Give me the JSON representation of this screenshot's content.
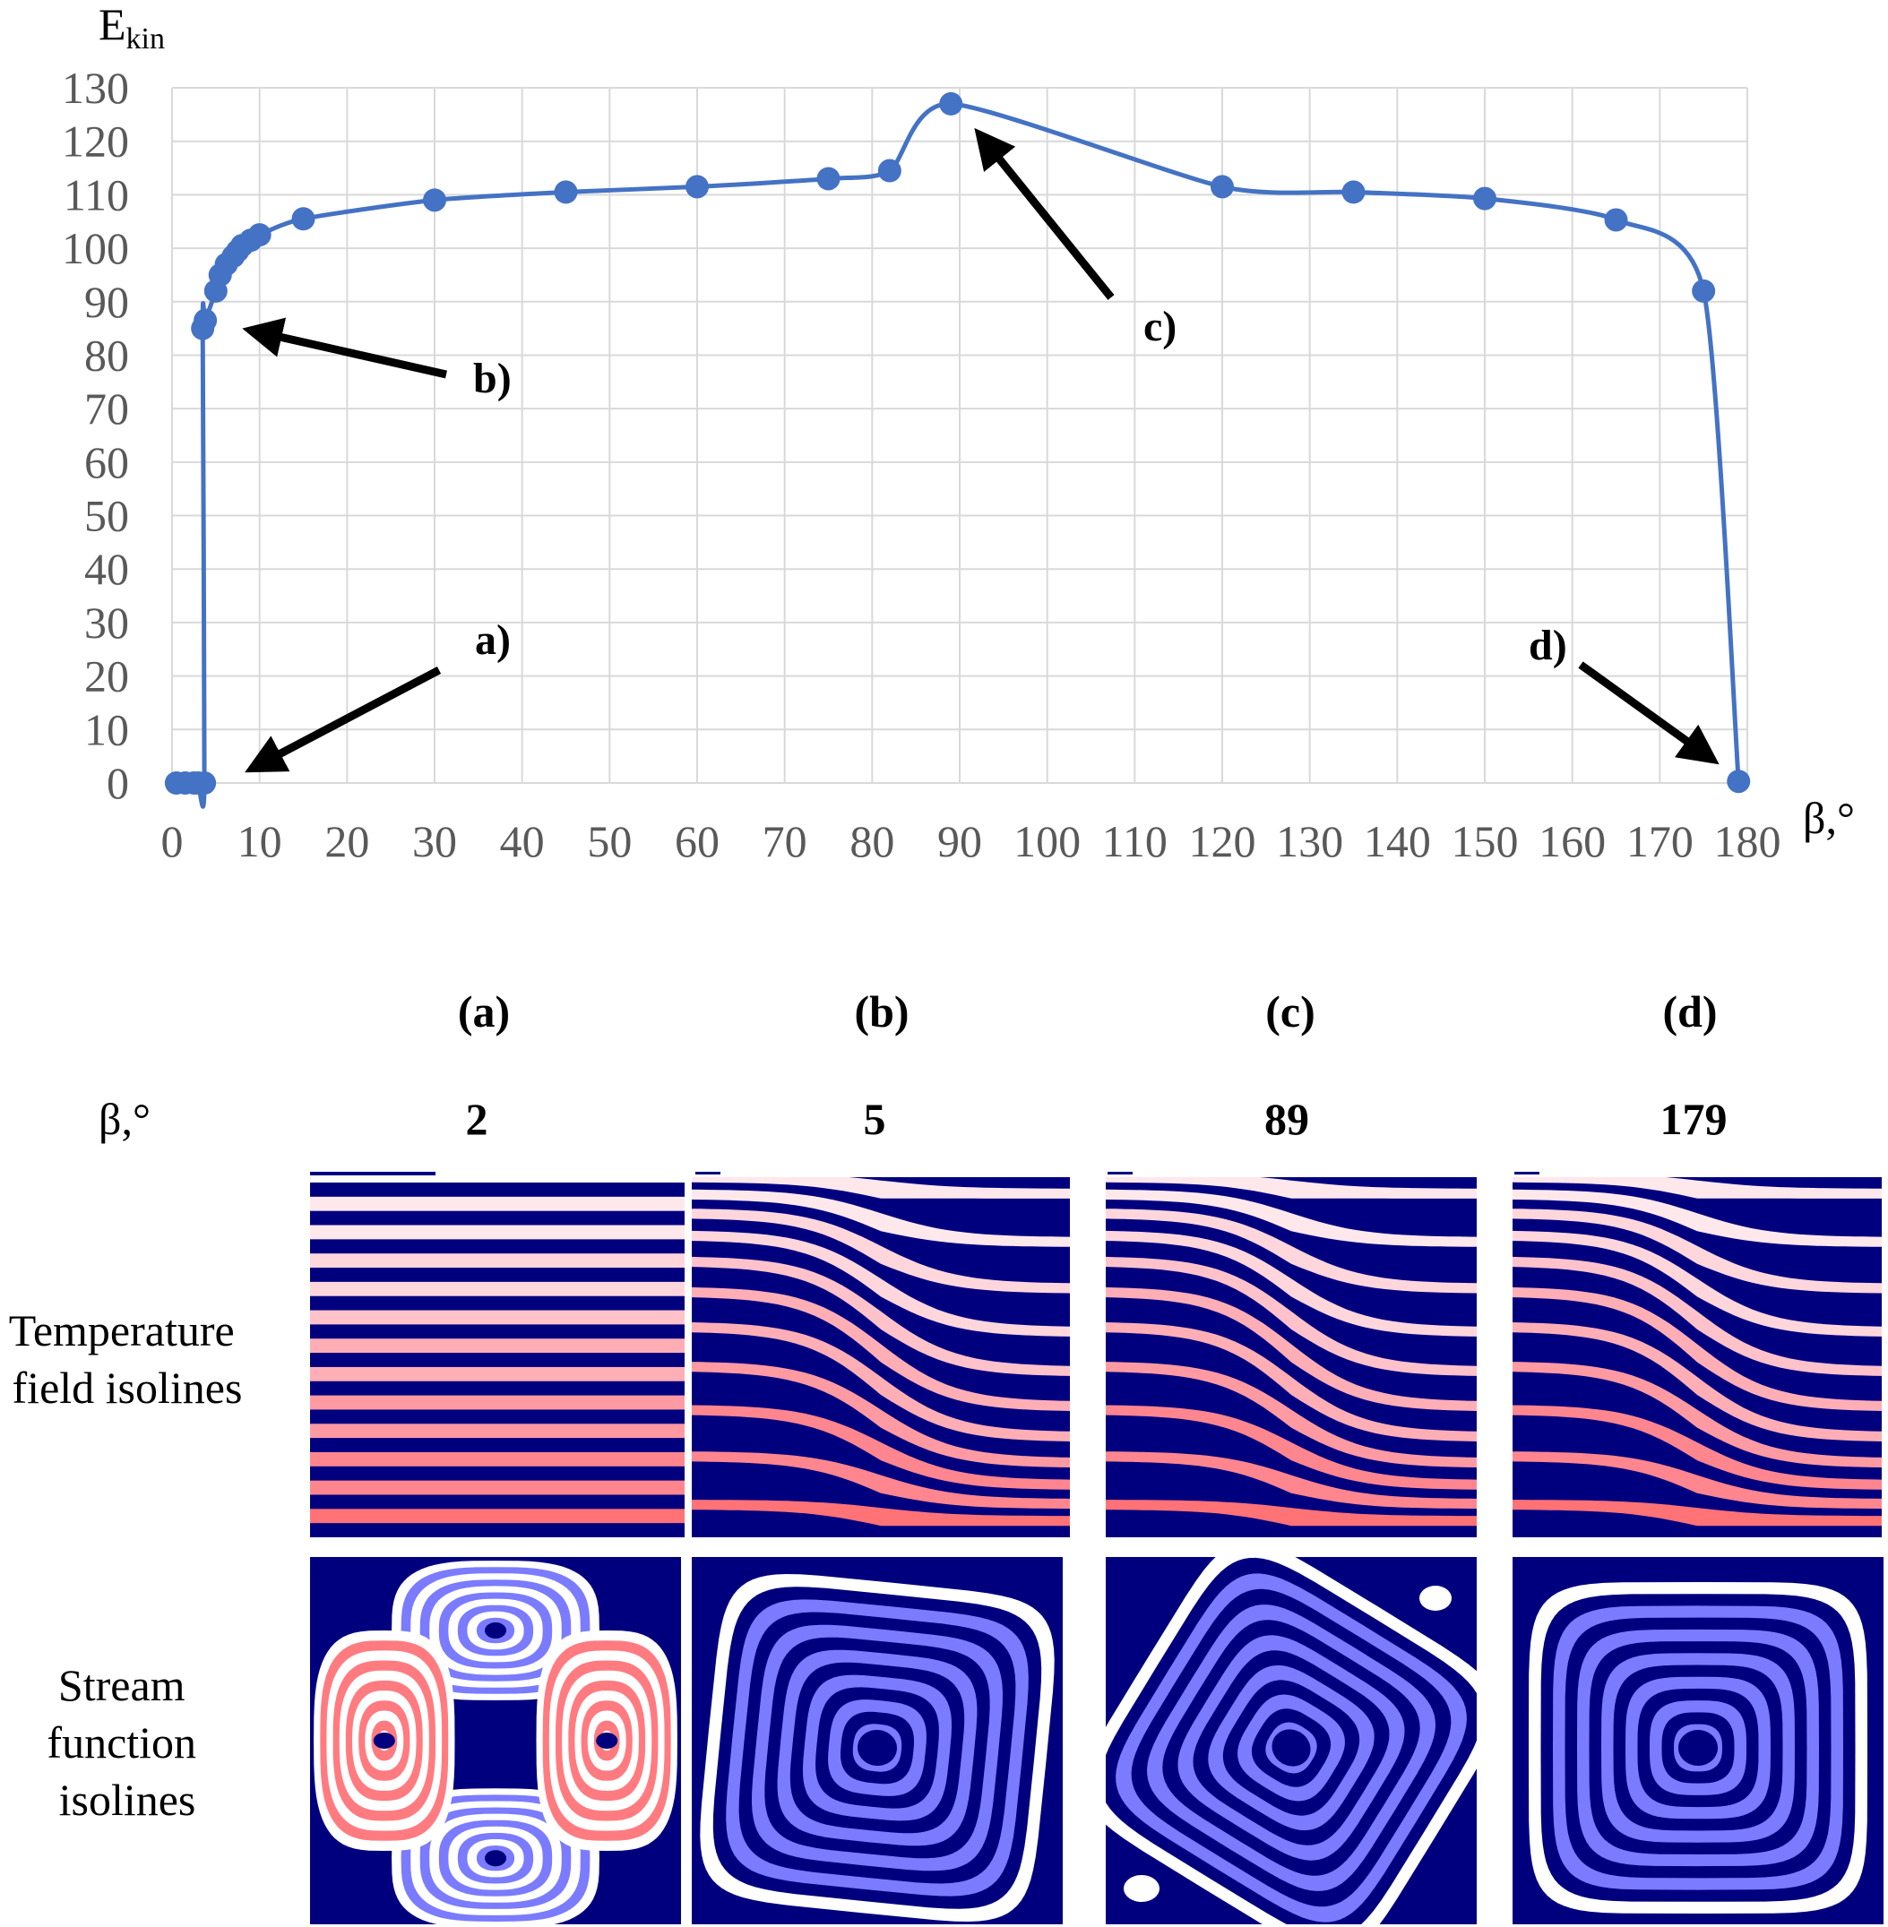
{
  "chart_data": {
    "type": "line",
    "title": "",
    "xlabel": "β,°",
    "ylabel": "E",
    "ylabel_sub": "kin",
    "xlim": [
      0,
      180
    ],
    "ylim": [
      0,
      130
    ],
    "xticks": [
      0,
      10,
      20,
      30,
      40,
      50,
      60,
      70,
      80,
      90,
      100,
      110,
      120,
      130,
      140,
      150,
      160,
      170,
      180
    ],
    "yticks": [
      0,
      10,
      20,
      30,
      40,
      50,
      60,
      70,
      80,
      90,
      100,
      110,
      120,
      130
    ],
    "grid": true,
    "line_color": "#4472c4",
    "series": [
      {
        "name": "Ekin",
        "x": [
          0.5,
          1.5,
          2.5,
          3,
          3.7,
          3.5,
          3.8,
          5,
          5.5,
          6.2,
          7,
          7.5,
          8,
          9,
          10,
          15,
          30,
          45,
          60,
          75,
          82,
          89,
          120,
          135,
          150,
          165,
          175,
          179
        ],
        "values": [
          0,
          0,
          0,
          0,
          0,
          85,
          86.5,
          92,
          95,
          97,
          98.5,
          99.5,
          100.5,
          101.5,
          102.5,
          105.5,
          109,
          110.5,
          111.5,
          113,
          114.5,
          127,
          111.5,
          110.5,
          109.3,
          105.3,
          92,
          0.3
        ]
      }
    ],
    "annotations": [
      {
        "label": "a)",
        "x": 4,
        "y": 0
      },
      {
        "label": "b)",
        "x": 4,
        "y": 84
      },
      {
        "label": "c)",
        "x": 90,
        "y": 125
      },
      {
        "label": "d)",
        "x": 178.5,
        "y": 1
      }
    ]
  },
  "panels": {
    "beta_label": "β,°",
    "columns": [
      {
        "letter": "(a)",
        "beta": "2"
      },
      {
        "letter": "(b)",
        "beta": "5"
      },
      {
        "letter": "(c)",
        "beta": "89"
      },
      {
        "letter": "(d)",
        "beta": "179"
      }
    ],
    "rows": [
      {
        "label_lines": [
          "Temperature",
          "field isolines"
        ]
      },
      {
        "label_lines": [
          "Stream",
          "function",
          "isolines"
        ]
      }
    ],
    "colors": {
      "navy": "#00007f",
      "white": "#ffffff",
      "light_blue": "#7b7bff",
      "temp_bands": [
        "#ffe8ec",
        "#ffd6dc",
        "#ffc2ca",
        "#ffaeb6",
        "#ff9aa2",
        "#ff868e",
        "#ff7276"
      ],
      "stream_red": "#ff7b80"
    }
  }
}
